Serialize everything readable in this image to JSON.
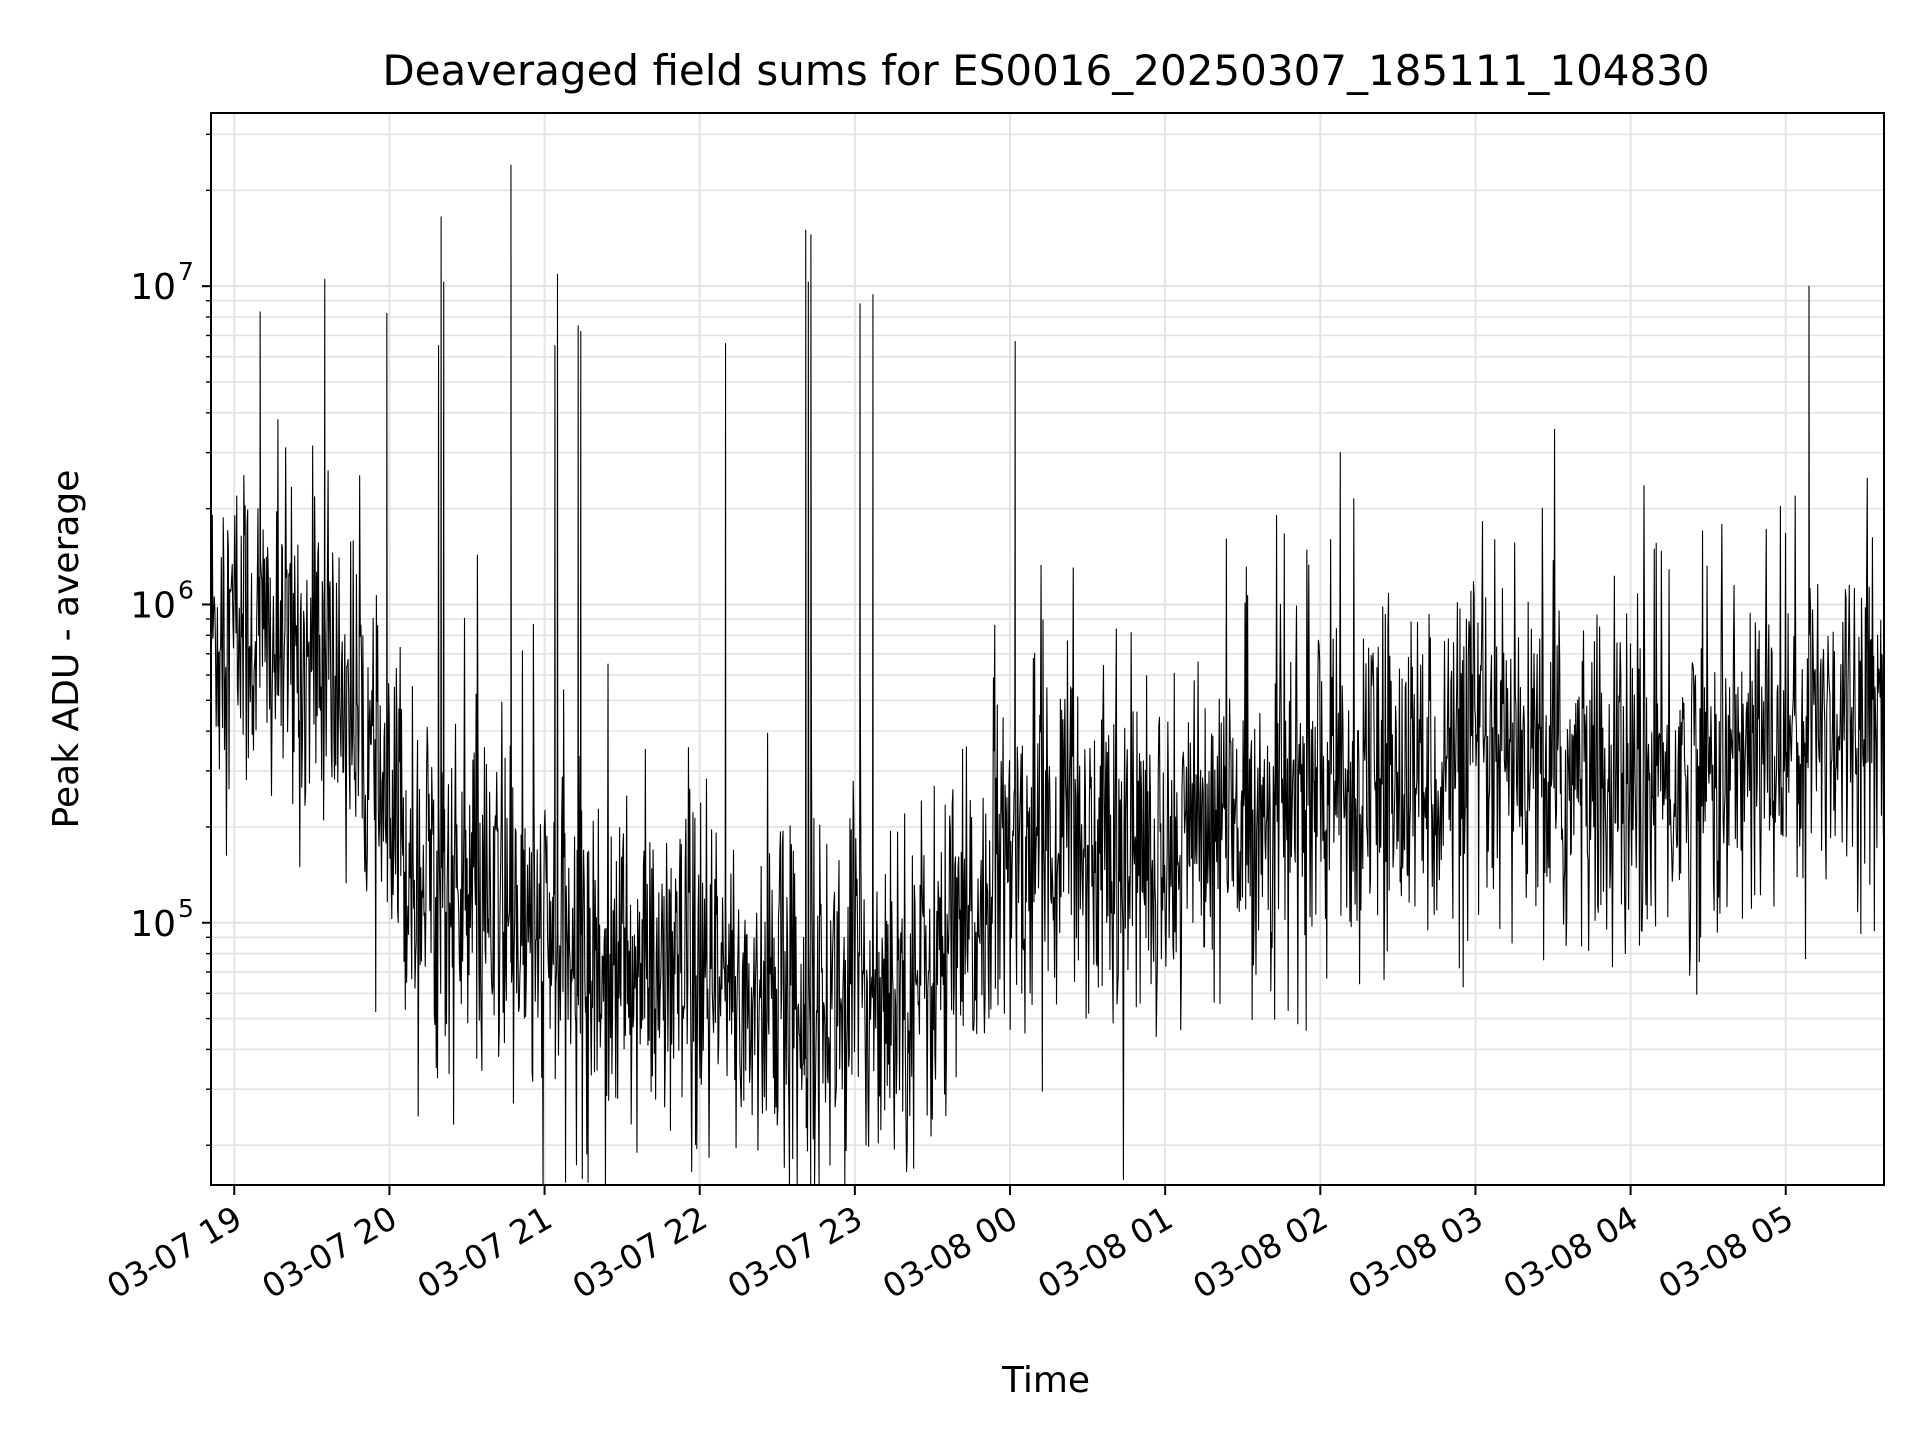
{
  "chart_data": {
    "type": "line",
    "title": "Deaveraged field sums for ES0016_20250307_185111_104830",
    "xlabel": "Time",
    "ylabel": "Peak ADU - average",
    "xlim": [
      "2025-03-07 18:51",
      "2025-03-08 05:38"
    ],
    "ylim": [
      15000,
      35000000
    ],
    "yscale": "log",
    "grid": true,
    "x_tick_labels": [
      "03-07 19",
      "03-07 20",
      "03-07 21",
      "03-07 22",
      "03-07 23",
      "03-08 00",
      "03-08 01",
      "03-08 02",
      "03-08 03",
      "03-08 04",
      "03-08 05"
    ],
    "x_tick_values": [
      "2025-03-07 19:00",
      "2025-03-07 20:00",
      "2025-03-07 21:00",
      "2025-03-07 22:00",
      "2025-03-07 23:00",
      "2025-03-08 00:00",
      "2025-03-08 01:00",
      "2025-03-08 02:00",
      "2025-03-08 03:00",
      "2025-03-08 04:00",
      "2025-03-08 05:00"
    ],
    "y_tick_labels": [
      {
        "base": "10",
        "exp": "5",
        "value": 100000
      },
      {
        "base": "10",
        "exp": "6",
        "value": 1000000
      },
      {
        "base": "10",
        "exp": "7",
        "value": 10000000
      }
    ],
    "series": [
      {
        "color": "#000000",
        "x": [
          "2025-03-07 18:51",
          "2025-03-07 19:00",
          "2025-03-07 19:15",
          "2025-03-07 19:30",
          "2025-03-07 19:45",
          "2025-03-07 20:00",
          "2025-03-07 20:15",
          "2025-03-07 20:30",
          "2025-03-07 20:45",
          "2025-03-07 21:00",
          "2025-03-07 21:15",
          "2025-03-07 21:30",
          "2025-03-07 21:45",
          "2025-03-07 22:00",
          "2025-03-07 22:15",
          "2025-03-07 22:30",
          "2025-03-07 22:45",
          "2025-03-07 23:00",
          "2025-03-07 23:15",
          "2025-03-07 23:30",
          "2025-03-07 23:45",
          "2025-03-08 00:00",
          "2025-03-08 00:15",
          "2025-03-08 00:30",
          "2025-03-08 00:45",
          "2025-03-08 01:00",
          "2025-03-08 01:15",
          "2025-03-08 01:30",
          "2025-03-08 01:45",
          "2025-03-08 02:00",
          "2025-03-08 02:15",
          "2025-03-08 02:30",
          "2025-03-08 02:45",
          "2025-03-08 03:00",
          "2025-03-08 03:15",
          "2025-03-08 03:30",
          "2025-03-08 03:45",
          "2025-03-08 04:00",
          "2025-03-08 04:15",
          "2025-03-08 04:30",
          "2025-03-08 04:45",
          "2025-03-08 05:00",
          "2025-03-08 05:15",
          "2025-03-08 05:38"
        ],
        "values": [
          800000,
          850000,
          750000,
          650000,
          500000,
          180000,
          140000,
          110000,
          100000,
          85000,
          75000,
          70000,
          65000,
          60000,
          58000,
          55000,
          55000,
          60000,
          65000,
          70000,
          90000,
          150000,
          200000,
          180000,
          160000,
          170000,
          190000,
          210000,
          230000,
          250000,
          260000,
          280000,
          300000,
          310000,
          300000,
          280000,
          260000,
          250000,
          270000,
          300000,
          320000,
          380000,
          450000,
          500000
        ],
        "spikes": [
          {
            "x": "2025-03-07 19:10",
            "value": 8300000
          },
          {
            "x": "2025-03-07 19:35",
            "value": 10500000
          },
          {
            "x": "2025-03-07 19:59",
            "value": 8200000
          },
          {
            "x": "2025-03-07 20:19",
            "value": 6500000
          },
          {
            "x": "2025-03-07 20:20",
            "value": 16500000
          },
          {
            "x": "2025-03-07 20:21",
            "value": 10300000
          },
          {
            "x": "2025-03-07 20:47",
            "value": 24000000
          },
          {
            "x": "2025-03-07 21:04",
            "value": 6500000
          },
          {
            "x": "2025-03-07 21:05",
            "value": 10900000
          },
          {
            "x": "2025-03-07 21:13",
            "value": 7500000
          },
          {
            "x": "2025-03-07 21:14",
            "value": 7200000
          },
          {
            "x": "2025-03-07 22:10",
            "value": 6600000
          },
          {
            "x": "2025-03-07 22:41",
            "value": 15000000
          },
          {
            "x": "2025-03-07 22:42",
            "value": 10300000
          },
          {
            "x": "2025-03-07 22:43",
            "value": 14500000
          },
          {
            "x": "2025-03-07 23:02",
            "value": 8800000
          },
          {
            "x": "2025-03-07 23:07",
            "value": 9400000
          },
          {
            "x": "2025-03-08 00:02",
            "value": 6700000
          },
          {
            "x": "2025-03-08 05:09",
            "value": 10000000
          }
        ]
      }
    ]
  }
}
